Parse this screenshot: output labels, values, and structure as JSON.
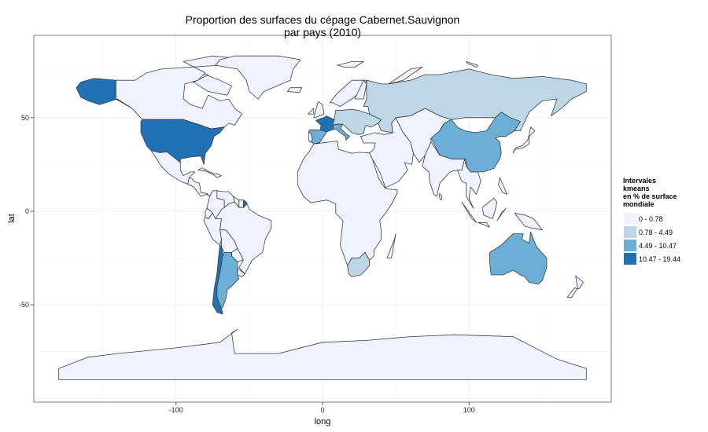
{
  "title": {
    "line1": "Proportion des surfaces du cépage Cabernet.Sauvignon",
    "line2": "par pays (2010)"
  },
  "axes": {
    "x_label": "long",
    "y_label": "lat",
    "x_ticks": [
      {
        "value": -100,
        "label": "-100"
      },
      {
        "value": 0,
        "label": "0"
      },
      {
        "value": 100,
        "label": "100"
      }
    ],
    "y_ticks": [
      {
        "value": 50,
        "label": "50"
      },
      {
        "value": 0,
        "label": "0"
      },
      {
        "value": -50,
        "label": "-50"
      }
    ],
    "xlim": [
      -197,
      197
    ],
    "ylim": [
      -102,
      94
    ]
  },
  "legend": {
    "title_lines": [
      "Intervales",
      " kmeans",
      " en % de surface",
      " mondiale"
    ],
    "items": [
      {
        "label": "0 - 0.78",
        "color": "#eff3ff"
      },
      {
        "label": "0.78 - 4.49",
        "color": "#bdd7e7"
      },
      {
        "label": "4.49 - 10.47",
        "color": "#6baed6"
      },
      {
        "label": "10.47 - 19.44",
        "color": "#2171b5"
      }
    ]
  },
  "colors": {
    "panel_background": "#ffffff",
    "grid": "#f0f0f0",
    "panel_border": "#7f7f7f",
    "country_border": "#3d3d3d"
  },
  "chart_data": {
    "type": "choropleth",
    "scheme": "blues-4-class",
    "regions": [
      {
        "name": "Antarctica",
        "class": 0
      },
      {
        "name": "Canada",
        "class": 0
      },
      {
        "name": "Greenland",
        "class": 0
      },
      {
        "name": "Alaska",
        "class": 3
      },
      {
        "name": "United States",
        "class": 3
      },
      {
        "name": "Mexico",
        "class": 0
      },
      {
        "name": "Central America",
        "class": 0
      },
      {
        "name": "Caribbean",
        "class": 0
      },
      {
        "name": "Colombia",
        "class": 0
      },
      {
        "name": "Venezuela",
        "class": 0
      },
      {
        "name": "Guyana",
        "class": 0
      },
      {
        "name": "Suriname",
        "class": 0
      },
      {
        "name": "French Guiana",
        "class": 3
      },
      {
        "name": "Ecuador",
        "class": 0
      },
      {
        "name": "Peru",
        "class": 0
      },
      {
        "name": "Brazil",
        "class": 0
      },
      {
        "name": "Bolivia",
        "class": 0
      },
      {
        "name": "Paraguay",
        "class": 0
      },
      {
        "name": "Uruguay",
        "class": 0
      },
      {
        "name": "Chile",
        "class": 3
      },
      {
        "name": "Argentina",
        "class": 2
      },
      {
        "name": "Portugal",
        "class": 0
      },
      {
        "name": "Spain",
        "class": 2
      },
      {
        "name": "France",
        "class": 3
      },
      {
        "name": "Italy",
        "class": 2
      },
      {
        "name": "Eastern Europe",
        "class": 1
      },
      {
        "name": "Russia",
        "class": 1
      },
      {
        "name": "China",
        "class": 2
      },
      {
        "name": "Australia",
        "class": 2
      },
      {
        "name": "South Africa",
        "class": 1
      },
      {
        "name": "Africa (rest)",
        "class": 0
      },
      {
        "name": "Middle East",
        "class": 0
      },
      {
        "name": "Central Asia",
        "class": 0
      },
      {
        "name": "India",
        "class": 0
      },
      {
        "name": "South-East Asia",
        "class": 0
      },
      {
        "name": "Japan",
        "class": 0
      },
      {
        "name": "New Zealand",
        "class": 0
      }
    ]
  }
}
